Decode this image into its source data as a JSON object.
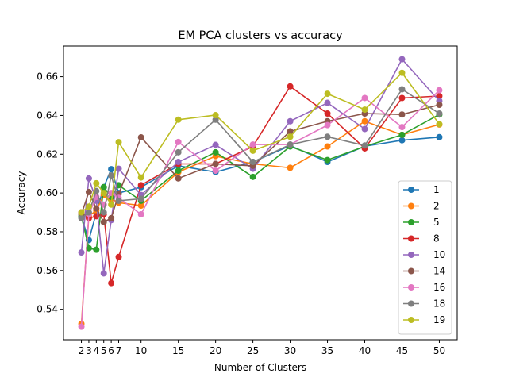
{
  "chart_data": {
    "type": "line",
    "title": "EM PCA clusters vs accuracy",
    "xlabel": "Number of Clusters",
    "ylabel": "Accuracy",
    "x": [
      2,
      3,
      4,
      5,
      6,
      7,
      10,
      15,
      20,
      25,
      30,
      35,
      40,
      45,
      50
    ],
    "x_ticks": [
      2,
      3,
      4,
      5,
      6,
      7,
      10,
      15,
      20,
      25,
      30,
      35,
      40,
      45,
      50
    ],
    "y_ticks": [
      0.54,
      0.56,
      0.58,
      0.6,
      0.62,
      0.64,
      0.66
    ],
    "y_tick_labels": [
      "0.54",
      "0.56",
      "0.58",
      "0.60",
      "0.62",
      "0.64",
      "0.66"
    ],
    "xlim": [
      -0.4,
      52.4
    ],
    "ylim": [
      0.5243,
      0.6758
    ],
    "grid": false,
    "legend_position": "lower-right",
    "series": [
      {
        "name": "1",
        "color": "#1f77b4",
        "values": [
          0.5874,
          0.5757,
          0.5898,
          0.603,
          0.6123,
          0.6,
          0.603,
          0.614,
          0.6108,
          0.616,
          0.6244,
          0.616,
          0.6241,
          0.6272,
          0.6288
        ]
      },
      {
        "name": "2",
        "color": "#ff7f0e",
        "values": [
          0.5325,
          0.588,
          0.591,
          0.599,
          0.597,
          0.595,
          0.5935,
          0.6108,
          0.619,
          0.615,
          0.613,
          0.624,
          0.637,
          0.63,
          0.6353
        ]
      },
      {
        "name": "5",
        "color": "#2ca02c",
        "values": [
          0.588,
          0.5715,
          0.5707,
          0.603,
          0.598,
          0.604,
          0.596,
          0.6115,
          0.621,
          0.6083,
          0.624,
          0.617,
          0.624,
          0.63,
          0.6405
        ]
      },
      {
        "name": "8",
        "color": "#d62728",
        "values": [
          0.59,
          0.587,
          0.588,
          0.589,
          0.5535,
          0.567,
          0.604,
          0.615,
          0.615,
          0.624,
          0.655,
          0.641,
          0.623,
          0.649,
          0.65
        ]
      },
      {
        "name": "10",
        "color": "#9467bd",
        "values": [
          0.5693,
          0.6075,
          0.596,
          0.5585,
          0.586,
          0.6125,
          0.599,
          0.616,
          0.6248,
          0.6125,
          0.637,
          0.6465,
          0.633,
          0.669,
          0.6475
        ]
      },
      {
        "name": "14",
        "color": "#8c564b",
        "values": [
          0.589,
          0.6005,
          0.592,
          0.585,
          0.587,
          0.5995,
          0.6287,
          0.6075,
          0.615,
          0.614,
          0.6318,
          0.637,
          0.641,
          0.6405,
          0.6455
        ]
      },
      {
        "name": "16",
        "color": "#e377c2",
        "values": [
          0.531,
          0.589,
          0.598,
          0.594,
          0.6,
          0.5975,
          0.589,
          0.6263,
          0.6115,
          0.625,
          0.625,
          0.635,
          0.649,
          0.634,
          0.653
        ]
      },
      {
        "name": "18",
        "color": "#7f7f7f",
        "values": [
          0.587,
          0.59,
          0.601,
          0.59,
          0.609,
          0.596,
          0.597,
          0.621,
          0.6378,
          0.616,
          0.625,
          0.629,
          0.6245,
          0.6535,
          0.641
        ]
      },
      {
        "name": "19",
        "color": "#bcbd22",
        "values": [
          0.59,
          0.593,
          0.605,
          0.6,
          0.594,
          0.6262,
          0.608,
          0.6378,
          0.6402,
          0.6218,
          0.629,
          0.6512,
          0.643,
          0.662,
          0.6355
        ]
      }
    ]
  }
}
